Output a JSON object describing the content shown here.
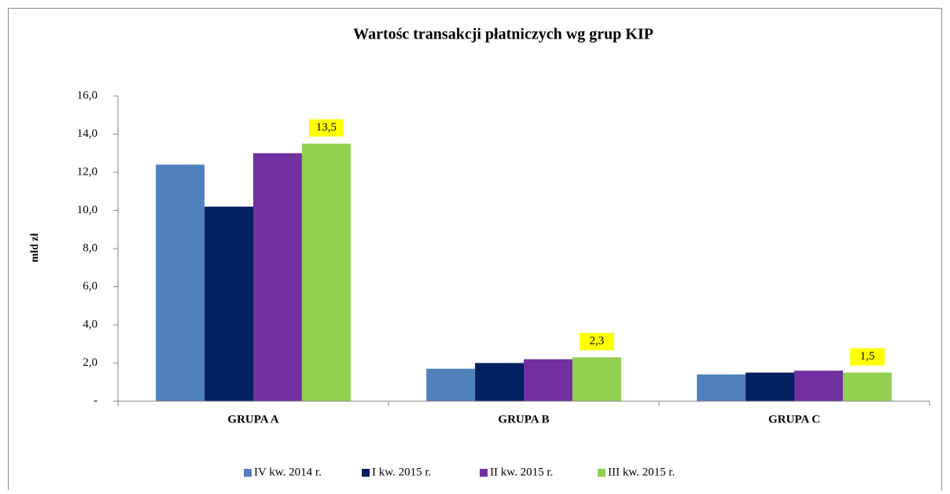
{
  "chart_data": {
    "type": "bar",
    "title": "Wartośc transakcji płatniczych wg grup KIP",
    "y_label": "mld zł",
    "categories": [
      "GRUPA A",
      "GRUPA B",
      "GRUPA C"
    ],
    "series": [
      {
        "name": "IV kw. 2014 r.",
        "color": "#4f81bd",
        "values": [
          12.4,
          1.7,
          1.4
        ]
      },
      {
        "name": "I kw. 2015 r.",
        "color": "#002060",
        "values": [
          10.2,
          2.0,
          1.5
        ]
      },
      {
        "name": "II kw. 2015 r.",
        "color": "#7030a0",
        "values": [
          13.0,
          2.2,
          1.6
        ]
      },
      {
        "name": "III kw. 2015 r.",
        "color": "#92d050",
        "values": [
          13.5,
          2.3,
          1.5
        ],
        "value_labels": [
          "13,5",
          "2,3",
          "1,5"
        ]
      }
    ],
    "ylim": [
      0,
      16
    ],
    "yticks": [
      {
        "value": 0,
        "label": "-"
      },
      {
        "value": 2,
        "label": "2,0"
      },
      {
        "value": 4,
        "label": "4,0"
      },
      {
        "value": 6,
        "label": "6,0"
      },
      {
        "value": 8,
        "label": "8,0"
      },
      {
        "value": 10,
        "label": "10,0"
      },
      {
        "value": 12,
        "label": "12,0"
      },
      {
        "value": 14,
        "label": "14,0"
      },
      {
        "value": 16,
        "label": "16,0"
      }
    ],
    "legend": "bottom",
    "label_background": "#ffff00"
  }
}
